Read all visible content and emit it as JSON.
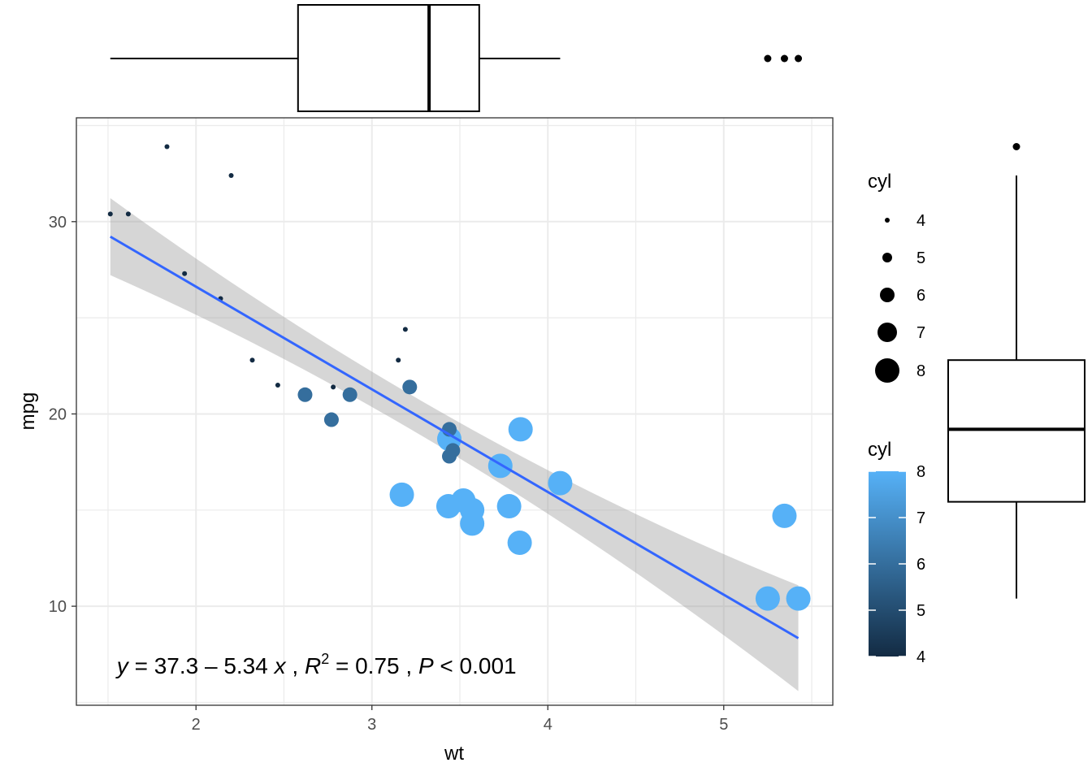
{
  "chart_data": {
    "type": "scatter",
    "xlabel": "wt",
    "ylabel": "mpg",
    "xlim": [
      1.32,
      5.62
    ],
    "ylim": [
      4.85,
      35.4
    ],
    "x_ticks": [
      2,
      3,
      4,
      5
    ],
    "y_ticks": [
      10,
      20,
      30
    ],
    "grid": true,
    "points": [
      {
        "x": 2.62,
        "y": 21.0,
        "cyl": 6
      },
      {
        "x": 2.875,
        "y": 21.0,
        "cyl": 6
      },
      {
        "x": 2.32,
        "y": 22.8,
        "cyl": 4
      },
      {
        "x": 3.215,
        "y": 21.4,
        "cyl": 6
      },
      {
        "x": 3.44,
        "y": 18.7,
        "cyl": 8
      },
      {
        "x": 3.46,
        "y": 18.1,
        "cyl": 6
      },
      {
        "x": 3.57,
        "y": 14.3,
        "cyl": 8
      },
      {
        "x": 3.19,
        "y": 24.4,
        "cyl": 4
      },
      {
        "x": 3.15,
        "y": 22.8,
        "cyl": 4
      },
      {
        "x": 3.44,
        "y": 19.2,
        "cyl": 6
      },
      {
        "x": 3.44,
        "y": 17.8,
        "cyl": 6
      },
      {
        "x": 4.07,
        "y": 16.4,
        "cyl": 8
      },
      {
        "x": 3.73,
        "y": 17.3,
        "cyl": 8
      },
      {
        "x": 3.78,
        "y": 15.2,
        "cyl": 8
      },
      {
        "x": 5.25,
        "y": 10.4,
        "cyl": 8
      },
      {
        "x": 5.424,
        "y": 10.4,
        "cyl": 8
      },
      {
        "x": 5.345,
        "y": 14.7,
        "cyl": 8
      },
      {
        "x": 2.2,
        "y": 32.4,
        "cyl": 4
      },
      {
        "x": 1.615,
        "y": 30.4,
        "cyl": 4
      },
      {
        "x": 1.835,
        "y": 33.9,
        "cyl": 4
      },
      {
        "x": 2.465,
        "y": 21.5,
        "cyl": 4
      },
      {
        "x": 3.52,
        "y": 15.5,
        "cyl": 8
      },
      {
        "x": 3.435,
        "y": 15.2,
        "cyl": 8
      },
      {
        "x": 3.84,
        "y": 13.3,
        "cyl": 8
      },
      {
        "x": 3.845,
        "y": 19.2,
        "cyl": 8
      },
      {
        "x": 1.935,
        "y": 27.3,
        "cyl": 4
      },
      {
        "x": 2.14,
        "y": 26.0,
        "cyl": 4
      },
      {
        "x": 1.513,
        "y": 30.4,
        "cyl": 4
      },
      {
        "x": 3.17,
        "y": 15.8,
        "cyl": 8
      },
      {
        "x": 2.77,
        "y": 19.7,
        "cyl": 6
      },
      {
        "x": 3.57,
        "y": 15.0,
        "cyl": 8
      },
      {
        "x": 2.78,
        "y": 21.4,
        "cyl": 4
      }
    ],
    "regression": {
      "intercept": 37.3,
      "slope": -5.34,
      "x_range": [
        1.513,
        5.424
      ],
      "band_halfwidth_min": 0.9,
      "band_halfwidth_max": 2.75
    },
    "annotation": {
      "y_var": "y",
      "eq_part1": " = 37.3 – 5.34 ",
      "x_var": "x",
      "sep1": " , ",
      "r_var": "R",
      "r_sup": "2",
      "r_val": " = 0.75 , ",
      "p_var": "P",
      "p_val": " < 0.001",
      "x": 1.55,
      "y": 6.5
    },
    "top_boxplot": {
      "min": 1.513,
      "q1": 2.58,
      "median": 3.325,
      "q3": 3.61,
      "max": 4.07,
      "outliers": [
        5.25,
        5.345,
        5.424
      ]
    },
    "right_boxplot": {
      "min": 10.4,
      "q1": 15.43,
      "median": 19.2,
      "q3": 22.8,
      "max": 32.4,
      "outliers": [
        33.9
      ]
    },
    "size_legend": {
      "title": "cyl",
      "entries": [
        {
          "label": "4",
          "cyl": 4
        },
        {
          "label": "5",
          "cyl": 5
        },
        {
          "label": "6",
          "cyl": 6
        },
        {
          "label": "7",
          "cyl": 7
        },
        {
          "label": "8",
          "cyl": 8
        }
      ]
    },
    "color_legend": {
      "title": "cyl",
      "labels": [
        "8",
        "7",
        "6",
        "5",
        "4"
      ],
      "low_color": "#132B43",
      "high_color": "#56B1F7"
    },
    "colors": {
      "line": "#3366FF",
      "band": "#999999",
      "grid": "#EBEBEB",
      "panel_border": "#333333"
    }
  }
}
